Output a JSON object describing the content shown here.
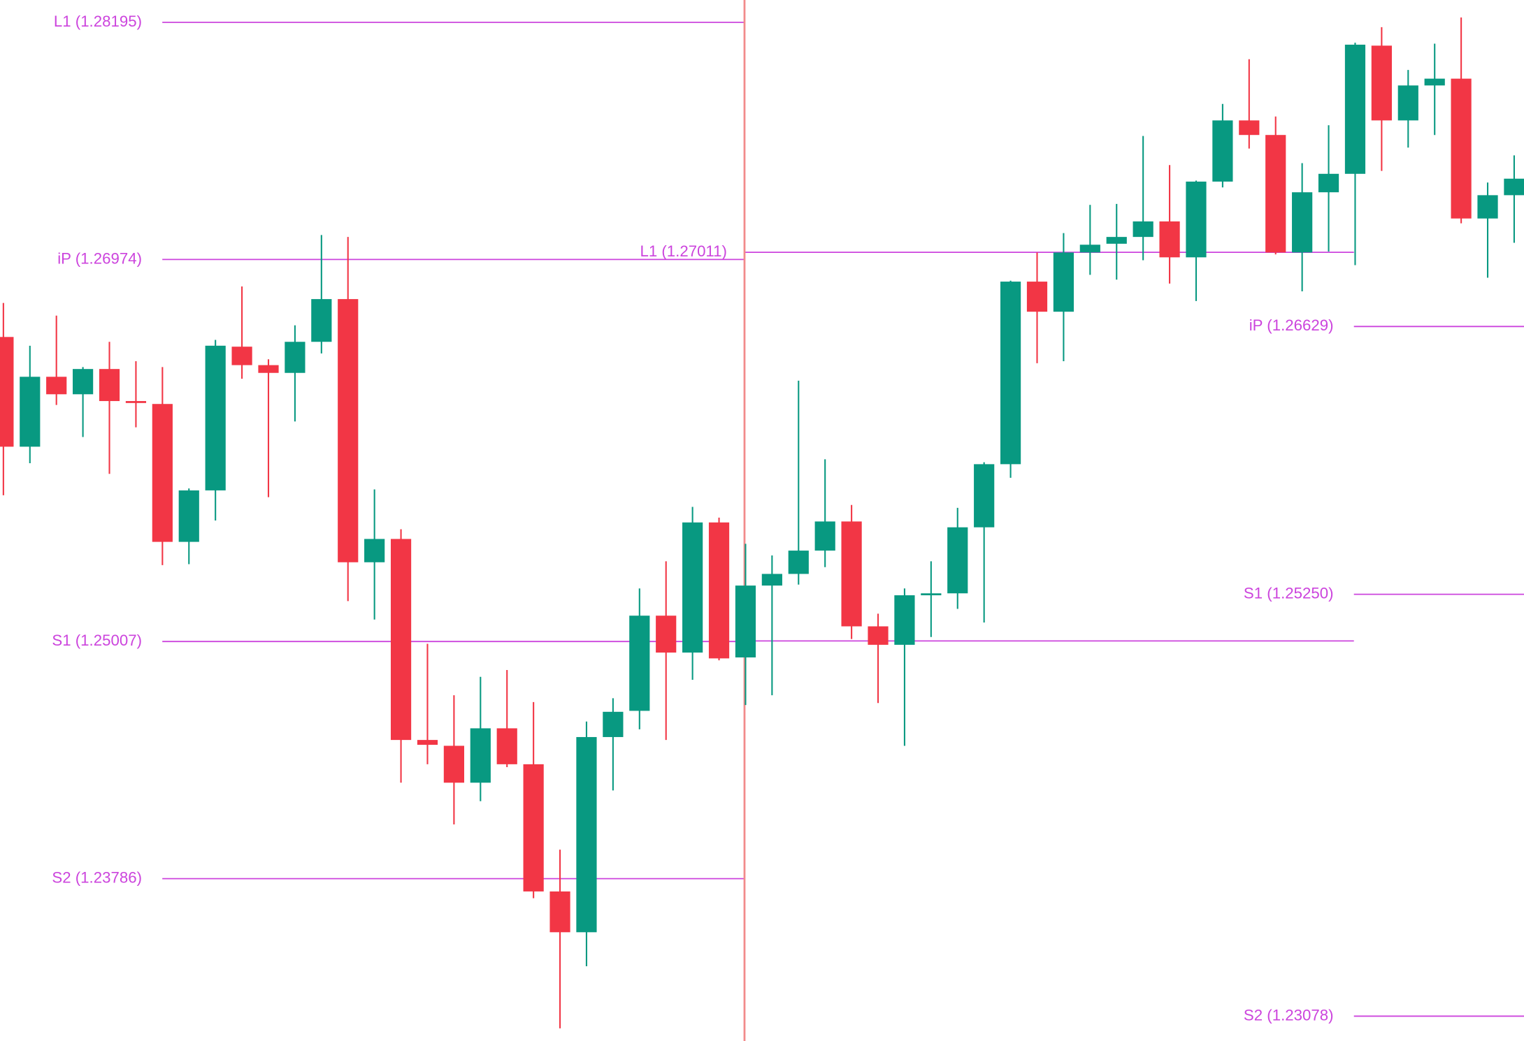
{
  "chart_data": {
    "type": "candlestick",
    "ylim": [
      1.2295,
      1.2831
    ],
    "up_color": "#089981",
    "down_color": "#f23645",
    "level_color": "#cc44dd",
    "open": [
      1.26575,
      1.2601,
      1.2637,
      1.2628,
      1.2641,
      1.26245,
      1.2623,
      1.2552,
      1.25785,
      1.26525,
      1.2643,
      1.2639,
      1.2655,
      1.2677,
      1.25415,
      1.25535,
      1.245,
      1.2447,
      1.2428,
      1.2456,
      1.24375,
      1.2372,
      1.2351,
      1.24515,
      1.2465,
      1.2514,
      1.2495,
      1.2562,
      1.24925,
      1.25295,
      1.25355,
      1.25475,
      1.25625,
      1.25085,
      1.2499,
      1.25245,
      1.25255,
      1.25595,
      1.2592,
      1.2686,
      1.26705,
      1.2701,
      1.27055,
      1.2709,
      1.2717,
      1.26985,
      1.27375,
      1.2769,
      1.27615,
      1.2701,
      1.2732,
      1.27415,
      1.28075,
      1.2769,
      1.2787,
      1.27905,
      1.27185,
      1.27305
    ],
    "high": [
      1.2675,
      1.2653,
      1.26685,
      1.2642,
      1.2655,
      1.2645,
      1.2642,
      1.25795,
      1.2656,
      1.26835,
      1.2646,
      1.26635,
      1.271,
      1.2709,
      1.2579,
      1.25585,
      1.24995,
      1.2473,
      1.24825,
      1.2486,
      1.24695,
      1.23935,
      1.24595,
      1.24715,
      1.2528,
      1.2542,
      1.257,
      1.25645,
      1.2551,
      1.2545,
      1.2635,
      1.25945,
      1.2571,
      1.2515,
      1.2528,
      1.2542,
      1.25695,
      1.2593,
      1.26865,
      1.2701,
      1.2711,
      1.27255,
      1.2726,
      1.2761,
      1.2746,
      1.2738,
      1.27775,
      1.28005,
      1.2771,
      1.2747,
      1.27665,
      1.2809,
      1.2817,
      1.2795,
      1.28085,
      1.2822,
      1.2737,
      1.2751
    ],
    "low": [
      1.2576,
      1.25925,
      1.26225,
      1.2606,
      1.2587,
      1.2611,
      1.254,
      1.25405,
      1.2563,
      1.2636,
      1.2575,
      1.2614,
      1.2649,
      1.25215,
      1.2512,
      1.2428,
      1.24375,
      1.24065,
      1.24185,
      1.2436,
      1.23685,
      1.23015,
      1.23335,
      1.2424,
      1.24555,
      1.245,
      1.2481,
      1.2491,
      1.2468,
      1.2473,
      1.253,
      1.2539,
      1.2502,
      1.2469,
      1.2447,
      1.2503,
      1.25175,
      1.25105,
      1.2585,
      1.2644,
      1.2645,
      1.26895,
      1.2687,
      1.2697,
      1.2685,
      1.2676,
      1.27345,
      1.27545,
      1.27,
      1.2681,
      1.27015,
      1.26945,
      1.2743,
      1.2755,
      1.27615,
      1.2716,
      1.2688,
      1.2706
    ],
    "close": [
      1.2601,
      1.2637,
      1.2628,
      1.2641,
      1.26245,
      1.26235,
      1.2552,
      1.25785,
      1.2653,
      1.2643,
      1.2639,
      1.2655,
      1.2677,
      1.25415,
      1.25535,
      1.245,
      1.24475,
      1.2428,
      1.2456,
      1.24375,
      1.2372,
      1.2351,
      1.24515,
      1.24645,
      1.2514,
      1.2495,
      1.2562,
      1.2492,
      1.25295,
      1.25355,
      1.25475,
      1.25625,
      1.25085,
      1.2499,
      1.25245,
      1.25255,
      1.25595,
      1.2592,
      1.2686,
      1.26705,
      1.2701,
      1.2705,
      1.2709,
      1.2717,
      1.26985,
      1.27375,
      1.2769,
      1.27615,
      1.2701,
      1.2732,
      1.27415,
      1.2808,
      1.2769,
      1.2787,
      1.27905,
      1.27185,
      1.27305,
      1.2739
    ],
    "pivot_periods": [
      {
        "levels": [
          {
            "label": "L1 (1.28195)",
            "value": 1.28195
          },
          {
            "label": "iP (1.26974)",
            "value": 1.26974
          },
          {
            "label": "S1 (1.25007)",
            "value": 1.25007
          },
          {
            "label": "S2 (1.23786)",
            "value": 1.23786
          }
        ]
      },
      {
        "levels": [
          {
            "label": "L1 (1.27011)",
            "value": 1.27011
          },
          {
            "value": 1.2501
          }
        ]
      },
      {
        "levels": [
          {
            "label": "iP (1.26629)",
            "value": 1.26629
          },
          {
            "label": "S1 (1.25250)",
            "value": 1.2525
          },
          {
            "label": "S2 (1.23078)",
            "value": 1.23078
          }
        ]
      }
    ]
  }
}
